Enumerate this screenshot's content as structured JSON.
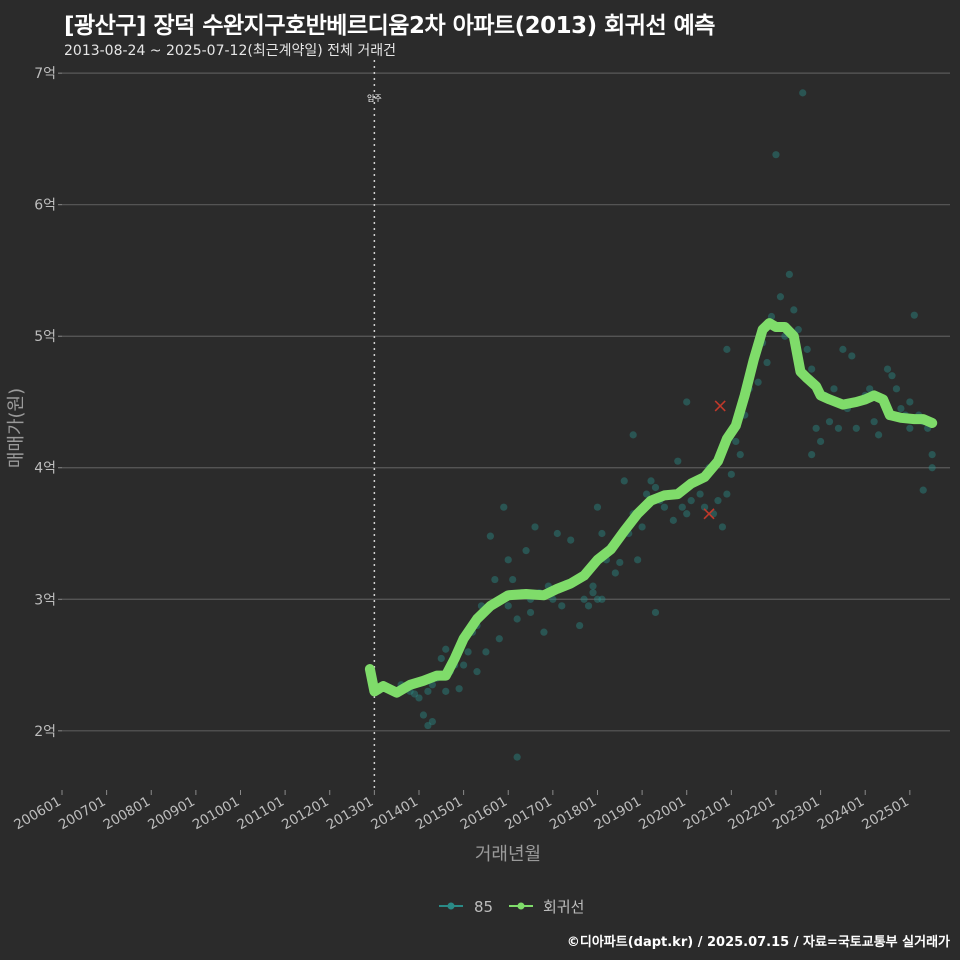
{
  "title": "[광산구] 장덕 수완지구호반베르디움2차 아파트(2013) 회귀선 예측",
  "subtitle": "2013-08-24 ~ 2025-07-12(최근계약일) 전체 거래건",
  "credit": "©디아파트(dapt.kr) / 2025.07.15 / 자료=국토교통부 실거래가",
  "colors": {
    "background": "#2b2b2b",
    "grid": "#5a5a5a",
    "scatter": "#2a8a86",
    "regression": "#7fdc6a",
    "outlier": "#c0392b",
    "text": "#bdbdbd"
  },
  "chart_data": {
    "type": "scatter",
    "xlabel": "거래년월",
    "ylabel": "매매가(원)",
    "xlim": [
      2006.0,
      2025.9
    ],
    "ylim": [
      1.55,
      7.1
    ],
    "y_ticks": [
      {
        "value": 2,
        "label": "2억"
      },
      {
        "value": 3,
        "label": "3억"
      },
      {
        "value": 4,
        "label": "4억"
      },
      {
        "value": 5,
        "label": "5억"
      },
      {
        "value": 6,
        "label": "6억"
      },
      {
        "value": 7,
        "label": "7억"
      }
    ],
    "x_ticks": [
      {
        "value": 2006,
        "label": "200601"
      },
      {
        "value": 2007,
        "label": "200701"
      },
      {
        "value": 2008,
        "label": "200801"
      },
      {
        "value": 2009,
        "label": "200901"
      },
      {
        "value": 2010,
        "label": "201001"
      },
      {
        "value": 2011,
        "label": "201101"
      },
      {
        "value": 2012,
        "label": "201201"
      },
      {
        "value": 2013,
        "label": "201301"
      },
      {
        "value": 2014,
        "label": "201401"
      },
      {
        "value": 2015,
        "label": "201501"
      },
      {
        "value": 2016,
        "label": "201601"
      },
      {
        "value": 2017,
        "label": "201701"
      },
      {
        "value": 2018,
        "label": "201801"
      },
      {
        "value": 2019,
        "label": "201901"
      },
      {
        "value": 2020,
        "label": "202001"
      },
      {
        "value": 2021,
        "label": "202101"
      },
      {
        "value": 2022,
        "label": "202201"
      },
      {
        "value": 2023,
        "label": "202301"
      },
      {
        "value": 2024,
        "label": "202401"
      },
      {
        "value": 2025,
        "label": "202501"
      }
    ],
    "annotation": {
      "x": 2013.0,
      "label": "입주"
    },
    "legend": [
      {
        "label": "85",
        "kind": "scatter"
      },
      {
        "label": "회귀선",
        "kind": "line"
      }
    ],
    "series": [
      {
        "name": "85",
        "type": "scatter",
        "points": [
          [
            2013.6,
            2.35
          ],
          [
            2013.7,
            2.32
          ],
          [
            2013.8,
            2.3
          ],
          [
            2013.9,
            2.28
          ],
          [
            2014.0,
            2.25
          ],
          [
            2014.1,
            2.12
          ],
          [
            2014.2,
            2.3
          ],
          [
            2014.2,
            2.04
          ],
          [
            2014.3,
            2.07
          ],
          [
            2014.3,
            2.35
          ],
          [
            2014.4,
            2.4
          ],
          [
            2014.5,
            2.55
          ],
          [
            2014.6,
            2.62
          ],
          [
            2014.6,
            2.3
          ],
          [
            2014.7,
            2.45
          ],
          [
            2014.8,
            2.5
          ],
          [
            2014.9,
            2.32
          ],
          [
            2015.0,
            2.5
          ],
          [
            2015.0,
            2.7
          ],
          [
            2015.1,
            2.6
          ],
          [
            2015.2,
            2.75
          ],
          [
            2015.3,
            2.8
          ],
          [
            2015.3,
            2.45
          ],
          [
            2015.4,
            2.95
          ],
          [
            2015.5,
            2.6
          ],
          [
            2015.6,
            3.48
          ],
          [
            2015.7,
            3.15
          ],
          [
            2015.8,
            3.0
          ],
          [
            2015.8,
            2.7
          ],
          [
            2015.9,
            3.7
          ],
          [
            2016.0,
            3.3
          ],
          [
            2016.0,
            2.95
          ],
          [
            2016.1,
            3.15
          ],
          [
            2016.2,
            1.8
          ],
          [
            2016.2,
            2.85
          ],
          [
            2016.3,
            3.05
          ],
          [
            2016.4,
            3.37
          ],
          [
            2016.5,
            3.0
          ],
          [
            2016.5,
            2.9
          ],
          [
            2016.6,
            3.55
          ],
          [
            2016.7,
            3.05
          ],
          [
            2016.8,
            2.75
          ],
          [
            2016.9,
            3.1
          ],
          [
            2017.0,
            3.0
          ],
          [
            2017.1,
            3.5
          ],
          [
            2017.2,
            2.95
          ],
          [
            2017.3,
            3.12
          ],
          [
            2017.4,
            3.45
          ],
          [
            2017.5,
            3.15
          ],
          [
            2017.6,
            2.8
          ],
          [
            2017.7,
            3.0
          ],
          [
            2017.8,
            2.95
          ],
          [
            2017.9,
            3.05
          ],
          [
            2017.9,
            3.1
          ],
          [
            2018.0,
            3.7
          ],
          [
            2018.0,
            3.0
          ],
          [
            2018.1,
            3.5
          ],
          [
            2018.1,
            3.0
          ],
          [
            2018.2,
            3.3
          ],
          [
            2018.3,
            3.4
          ],
          [
            2018.4,
            3.2
          ],
          [
            2018.5,
            3.28
          ],
          [
            2018.6,
            3.9
          ],
          [
            2018.7,
            3.5
          ],
          [
            2018.8,
            3.65
          ],
          [
            2018.8,
            4.25
          ],
          [
            2018.9,
            3.3
          ],
          [
            2019.0,
            3.55
          ],
          [
            2019.1,
            3.8
          ],
          [
            2019.2,
            3.9
          ],
          [
            2019.3,
            3.85
          ],
          [
            2019.3,
            2.9
          ],
          [
            2019.4,
            3.75
          ],
          [
            2019.5,
            3.7
          ],
          [
            2019.6,
            3.8
          ],
          [
            2019.7,
            3.6
          ],
          [
            2019.8,
            4.05
          ],
          [
            2019.9,
            3.7
          ],
          [
            2020.0,
            3.65
          ],
          [
            2020.0,
            4.5
          ],
          [
            2020.1,
            3.75
          ],
          [
            2020.2,
            3.9
          ],
          [
            2020.3,
            3.8
          ],
          [
            2020.4,
            3.7
          ],
          [
            2020.5,
            4.0
          ],
          [
            2020.6,
            3.65
          ],
          [
            2020.7,
            3.75
          ],
          [
            2020.8,
            3.55
          ],
          [
            2020.9,
            3.8
          ],
          [
            2020.9,
            4.9
          ],
          [
            2021.0,
            3.95
          ],
          [
            2021.1,
            4.2
          ],
          [
            2021.2,
            4.1
          ],
          [
            2021.3,
            4.4
          ],
          [
            2021.4,
            4.6
          ],
          [
            2021.5,
            4.85
          ],
          [
            2021.6,
            4.65
          ],
          [
            2021.7,
            4.95
          ],
          [
            2021.8,
            4.8
          ],
          [
            2021.9,
            5.15
          ],
          [
            2022.0,
            6.38
          ],
          [
            2022.1,
            5.3
          ],
          [
            2022.2,
            5.0
          ],
          [
            2022.3,
            5.47
          ],
          [
            2022.4,
            5.2
          ],
          [
            2022.5,
            5.05
          ],
          [
            2022.6,
            6.85
          ],
          [
            2022.7,
            4.9
          ],
          [
            2022.8,
            4.75
          ],
          [
            2022.8,
            4.1
          ],
          [
            2022.9,
            4.3
          ],
          [
            2023.0,
            4.2
          ],
          [
            2023.1,
            4.55
          ],
          [
            2023.2,
            4.35
          ],
          [
            2023.3,
            4.6
          ],
          [
            2023.4,
            4.3
          ],
          [
            2023.5,
            4.9
          ],
          [
            2023.6,
            4.45
          ],
          [
            2023.7,
            4.85
          ],
          [
            2023.8,
            4.3
          ],
          [
            2023.9,
            4.5
          ],
          [
            2024.0,
            4.55
          ],
          [
            2024.1,
            4.6
          ],
          [
            2024.2,
            4.35
          ],
          [
            2024.3,
            4.25
          ],
          [
            2024.4,
            4.5
          ],
          [
            2024.5,
            4.75
          ],
          [
            2024.6,
            4.7
          ],
          [
            2024.7,
            4.6
          ],
          [
            2024.8,
            4.45
          ],
          [
            2024.9,
            4.4
          ],
          [
            2025.0,
            4.5
          ],
          [
            2025.0,
            4.3
          ],
          [
            2025.1,
            5.16
          ],
          [
            2025.2,
            4.4
          ],
          [
            2025.3,
            4.35
          ],
          [
            2025.3,
            3.83
          ],
          [
            2025.4,
            4.3
          ],
          [
            2025.5,
            4.0
          ],
          [
            2025.5,
            4.1
          ]
        ]
      },
      {
        "name": "회귀선",
        "type": "line",
        "points": [
          [
            2012.9,
            2.47
          ],
          [
            2013.0,
            2.3
          ],
          [
            2013.2,
            2.34
          ],
          [
            2013.5,
            2.29
          ],
          [
            2013.8,
            2.35
          ],
          [
            2014.1,
            2.38
          ],
          [
            2014.4,
            2.42
          ],
          [
            2014.6,
            2.42
          ],
          [
            2014.8,
            2.55
          ],
          [
            2015.0,
            2.7
          ],
          [
            2015.3,
            2.85
          ],
          [
            2015.6,
            2.95
          ],
          [
            2016.0,
            3.03
          ],
          [
            2016.4,
            3.04
          ],
          [
            2016.8,
            3.03
          ],
          [
            2017.1,
            3.08
          ],
          [
            2017.4,
            3.12
          ],
          [
            2017.7,
            3.18
          ],
          [
            2018.0,
            3.3
          ],
          [
            2018.3,
            3.38
          ],
          [
            2018.6,
            3.52
          ],
          [
            2018.9,
            3.65
          ],
          [
            2019.2,
            3.75
          ],
          [
            2019.5,
            3.79
          ],
          [
            2019.8,
            3.8
          ],
          [
            2020.1,
            3.88
          ],
          [
            2020.4,
            3.93
          ],
          [
            2020.7,
            4.05
          ],
          [
            2020.9,
            4.22
          ],
          [
            2021.1,
            4.32
          ],
          [
            2021.3,
            4.55
          ],
          [
            2021.5,
            4.82
          ],
          [
            2021.7,
            5.05
          ],
          [
            2021.85,
            5.1
          ],
          [
            2022.0,
            5.07
          ],
          [
            2022.2,
            5.07
          ],
          [
            2022.4,
            5.0
          ],
          [
            2022.55,
            4.73
          ],
          [
            2022.7,
            4.68
          ],
          [
            2022.9,
            4.62
          ],
          [
            2023.0,
            4.55
          ],
          [
            2023.2,
            4.52
          ],
          [
            2023.5,
            4.48
          ],
          [
            2023.8,
            4.5
          ],
          [
            2024.0,
            4.52
          ],
          [
            2024.2,
            4.55
          ],
          [
            2024.4,
            4.52
          ],
          [
            2024.55,
            4.4
          ],
          [
            2024.8,
            4.38
          ],
          [
            2025.1,
            4.37
          ],
          [
            2025.3,
            4.37
          ],
          [
            2025.5,
            4.34
          ]
        ]
      },
      {
        "name": "outliers",
        "type": "marker",
        "points": [
          [
            2020.75,
            4.47
          ],
          [
            2020.5,
            3.65
          ]
        ]
      }
    ]
  }
}
